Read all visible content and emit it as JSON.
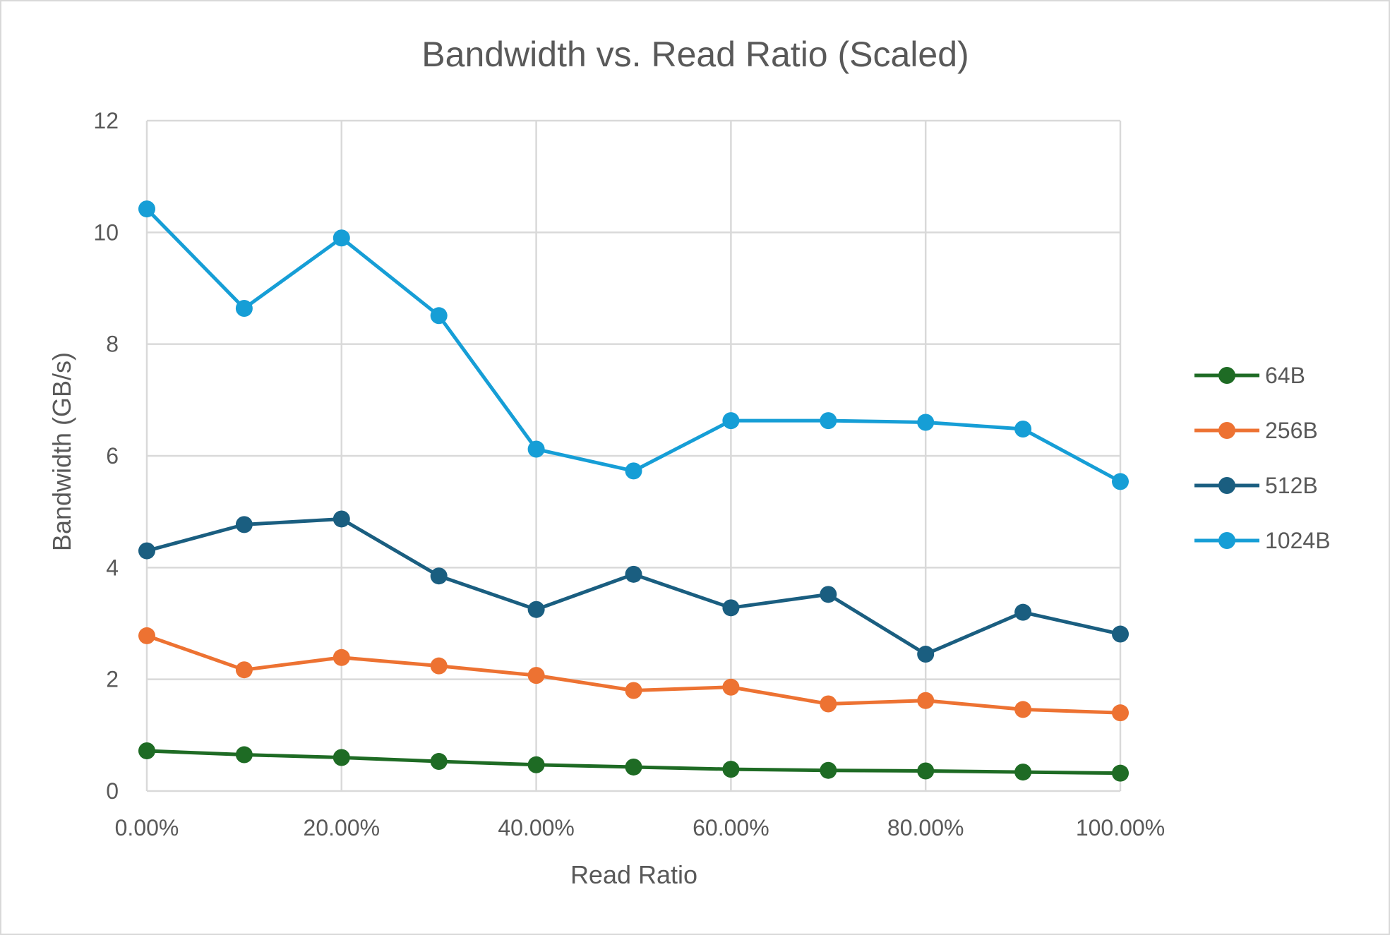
{
  "chart_data": {
    "type": "line",
    "title": "Bandwidth vs. Read Ratio (Scaled)",
    "xlabel": "Read Ratio",
    "ylabel": "Bandwidth (GB/s)",
    "x": [
      0,
      0.1,
      0.2,
      0.3,
      0.4,
      0.5,
      0.6,
      0.7,
      0.8,
      0.9,
      1.0
    ],
    "xlim": [
      0,
      1
    ],
    "ylim": [
      0,
      12
    ],
    "x_ticks": [
      "0.00%",
      "20.00%",
      "40.00%",
      "60.00%",
      "80.00%",
      "100.00%"
    ],
    "x_tick_values": [
      0,
      0.2,
      0.4,
      0.6,
      0.8,
      1.0
    ],
    "y_ticks": [
      "0",
      "2",
      "4",
      "6",
      "8",
      "10",
      "12"
    ],
    "y_tick_values": [
      0,
      2,
      4,
      6,
      8,
      10,
      12
    ],
    "grid": true,
    "legend_position": "right",
    "series": [
      {
        "name": "64B",
        "color": "#1e6b24",
        "values": [
          0.72,
          0.65,
          0.6,
          0.53,
          0.47,
          0.43,
          0.39,
          0.37,
          0.36,
          0.34,
          0.32
        ]
      },
      {
        "name": "256B",
        "color": "#ed7232",
        "values": [
          2.78,
          2.17,
          2.39,
          2.24,
          2.07,
          1.8,
          1.86,
          1.56,
          1.62,
          1.46,
          1.4
        ]
      },
      {
        "name": "512B",
        "color": "#1a5e80",
        "values": [
          4.3,
          4.77,
          4.87,
          3.85,
          3.25,
          3.88,
          3.28,
          3.52,
          2.45,
          3.2,
          2.81
        ]
      },
      {
        "name": "1024B",
        "color": "#169ed6",
        "values": [
          10.42,
          8.64,
          9.9,
          8.51,
          6.12,
          5.73,
          6.63,
          6.63,
          6.6,
          6.48,
          5.54
        ]
      }
    ]
  }
}
